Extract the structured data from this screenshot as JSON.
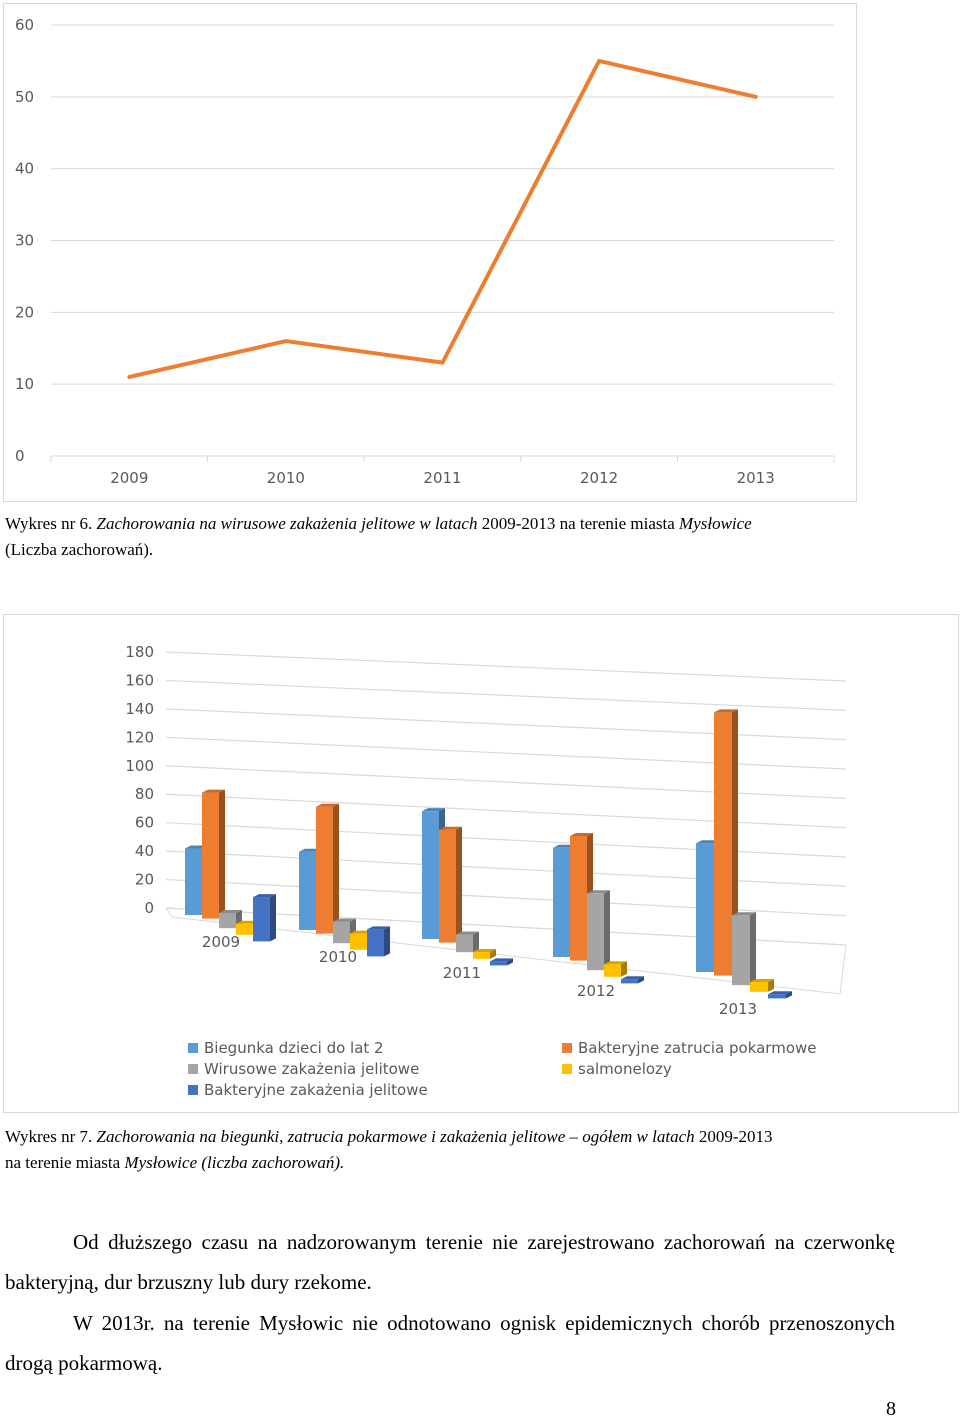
{
  "chart_data": [
    {
      "type": "line",
      "title": "",
      "xlabel": "",
      "ylabel": "",
      "categories": [
        "2009",
        "2010",
        "2011",
        "2012",
        "2013"
      ],
      "yticks": [
        "0",
        "10",
        "20",
        "30",
        "40",
        "50",
        "60"
      ],
      "ylim": [
        0,
        60
      ],
      "grid": true,
      "series": [
        {
          "color": "#ED7D31",
          "values": [
            11,
            16,
            13,
            55,
            50
          ]
        }
      ]
    },
    {
      "type": "bar",
      "style": "3d-clustered",
      "title": "",
      "xlabel": "",
      "ylabel": "",
      "categories": [
        "2009",
        "2010",
        "2011",
        "2012",
        "2013"
      ],
      "yticks": [
        "0",
        "20",
        "40",
        "60",
        "80",
        "100",
        "120",
        "140",
        "160",
        "180"
      ],
      "ylim": [
        0,
        180
      ],
      "grid": true,
      "legend_position": "bottom",
      "series": [
        {
          "name": "Biegunka dzieci do lat 2",
          "color": "#5B9BD5",
          "values": [
            48,
            58,
            94,
            78,
            92
          ]
        },
        {
          "name": "Bakteryjne zatrucia pokarmowe",
          "color": "#ED7D31",
          "values": [
            91,
            94,
            83,
            89,
            188
          ]
        },
        {
          "name": "Wirusowe zakażenia jelitowe",
          "color": "#A5A5A5",
          "values": [
            11,
            16,
            13,
            55,
            50
          ]
        },
        {
          "name": "salmonelozy",
          "color": "#FFC000",
          "values": [
            8,
            12,
            5,
            9,
            7
          ]
        },
        {
          "name": "Bakteryjne zakażenia jelitowe",
          "color": "#4472C4",
          "values": [
            32,
            20,
            3,
            3,
            3
          ]
        }
      ]
    }
  ],
  "captions": {
    "chart1_prefix": "Wykres nr 6. ",
    "chart1_text": "Zachorowania na wirusowe zakażenia jelitowe w latach ",
    "chart1_years": "2009-2013 na terenie miasta ",
    "chart1_city": "Mysłowice",
    "chart1_suffix": "(Liczba zachorowań).",
    "chart2_prefix": "Wykres nr 7. ",
    "chart2_text": "Zachorowania na biegunki, zatrucia pokarmowe i zakażenia jelitowe – ogółem w latach ",
    "chart2_years": "2009-2013",
    "chart2_suffix_a": "na terenie miasta ",
    "chart2_suffix_b": "Mysłowice (liczba zachorowań)."
  },
  "paragraphs": {
    "p1": "Od dłuższego czasu na nadzorowanym terenie nie zarejestrowano zachorowań na czerwonkę bakteryjną, dur brzuszny lub dury rzekome.",
    "p2": "W 2013r. na terenie Mysłowic nie odnotowano ognisk epidemicznych chorób przenoszonych drogą pokarmową."
  },
  "page_number": "8"
}
